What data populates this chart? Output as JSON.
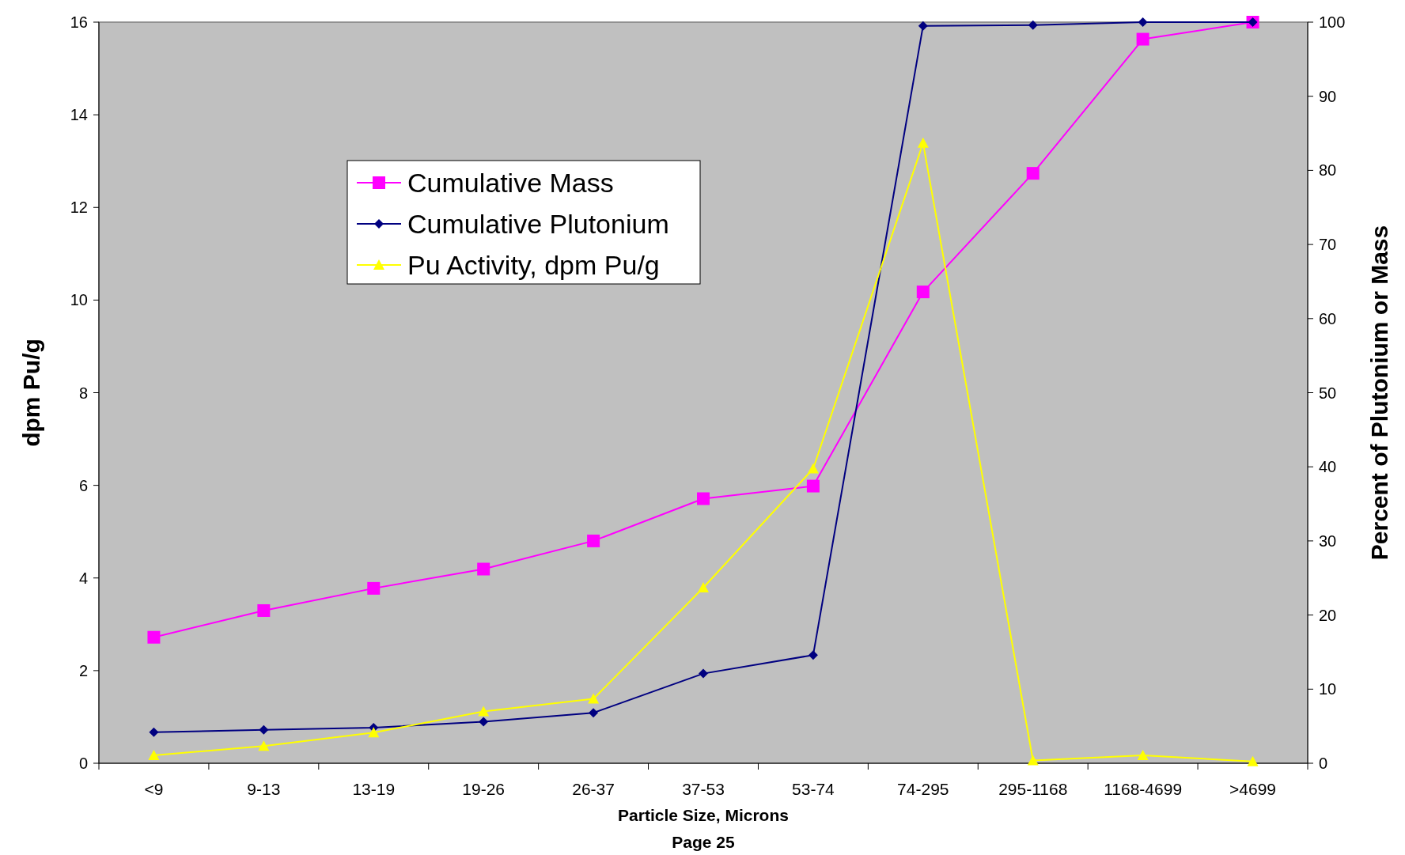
{
  "chart_data": {
    "type": "line",
    "xlabel": "Particle Size, Microns",
    "ylabel": "dpm Pu/g",
    "y2label": "Percent of Plutonium or Mass",
    "categories": [
      "<9",
      "9-13",
      "13-19",
      "19-26",
      "26-37",
      "37-53",
      "53-74",
      "74-295",
      "295-1168",
      "1168-4699",
      ">4699"
    ],
    "series": [
      {
        "name": "Cumulative Mass",
        "color": "#ff00ff",
        "marker": "square",
        "axis": "y2",
        "values": [
          17.0,
          20.6,
          23.6,
          26.2,
          30.0,
          35.7,
          37.4,
          63.6,
          79.6,
          97.7,
          100
        ]
      },
      {
        "name": "Cumulative Plutonium",
        "color": "#000080",
        "marker": "diamond",
        "axis": "y2",
        "values": [
          4.2,
          4.5,
          4.8,
          5.6,
          6.8,
          12.1,
          14.6,
          99.5,
          99.6,
          100,
          100
        ]
      },
      {
        "name": "Pu Activity, dpm Pu/g",
        "color": "#ffff00",
        "marker": "triangle",
        "values": [
          0.17,
          0.37,
          0.66,
          1.12,
          1.39,
          3.79,
          6.36,
          13.39,
          0.06,
          0.17,
          0.04
        ]
      }
    ],
    "ylim": [
      0,
      16
    ],
    "yticks": [
      0,
      2,
      4,
      6,
      8,
      10,
      12,
      14,
      16
    ],
    "y2lim": [
      0,
      100
    ],
    "y2ticks": [
      0,
      10,
      20,
      30,
      40,
      50,
      60,
      70,
      80,
      90,
      100
    ],
    "grid": false,
    "legend": "top left",
    "annotations": [
      "Page 25"
    ]
  }
}
